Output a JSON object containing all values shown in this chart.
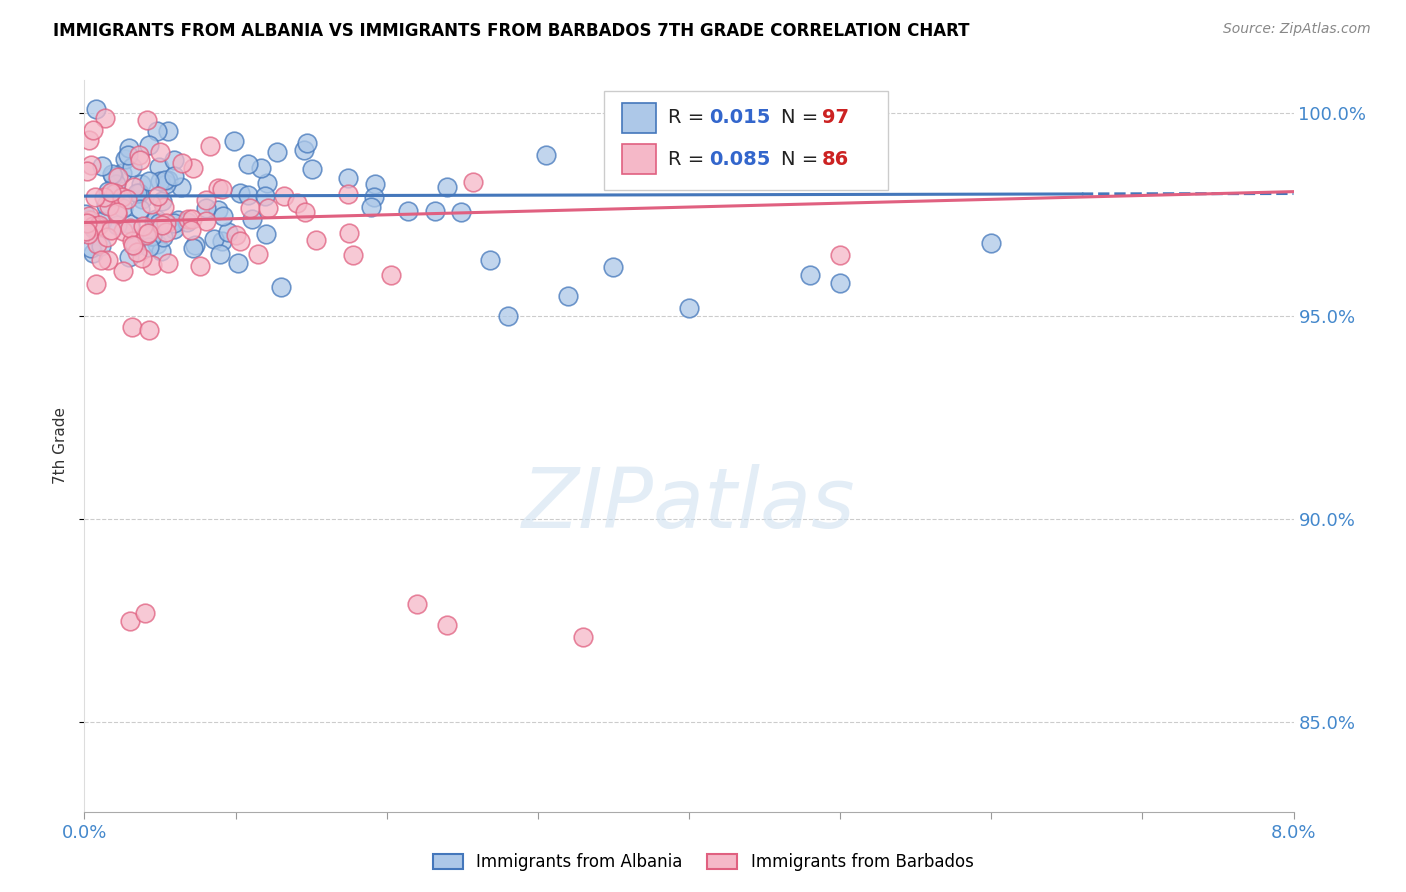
{
  "title": "IMMIGRANTS FROM ALBANIA VS IMMIGRANTS FROM BARBADOS 7TH GRADE CORRELATION CHART",
  "source": "Source: ZipAtlas.com",
  "ylabel": "7th Grade",
  "color_albania": "#adc8e8",
  "color_barbados": "#f5b8c8",
  "color_albania_line": "#4477bb",
  "color_barbados_line": "#e06080",
  "color_axis_labels": "#4488cc",
  "xmin": 0.0,
  "xmax": 0.08,
  "ymin": 0.828,
  "ymax": 1.008,
  "yticks": [
    0.85,
    0.9,
    0.95,
    1.0
  ],
  "grid_color": "#cccccc",
  "r_albania": 0.015,
  "n_albania": 97,
  "r_barbados": 0.085,
  "n_barbados": 86
}
